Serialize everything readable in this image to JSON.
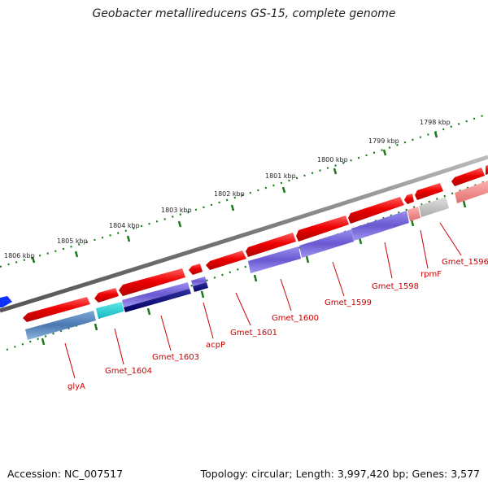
{
  "title": "Geobacter metallireducens GS-15, complete genome",
  "footer": {
    "accession": "Accession: NC_007517",
    "stats": "Topology: circular; Length: 3,997,420 bp; Genes: 3,577"
  },
  "scale_labels": [
    "1806 kbp",
    "1805 kbp",
    "1804 kbp",
    "1803 kbp",
    "1802 kbp",
    "1801 kbp",
    "1800 kbp",
    "1799 kbp",
    "1798 kbp"
  ],
  "gene_labels": [
    "glyA",
    "Gmet_1604",
    "Gmet_1603",
    "acpP",
    "Gmet_1601",
    "Gmet_1600",
    "Gmet_1599",
    "Gmet_1598",
    "rpmF",
    "Gmet_1596"
  ],
  "colors": {
    "cds": "#ee0000",
    "backbone": "#777777",
    "tick": "#1a7a1a",
    "label": "#cc0000"
  }
}
